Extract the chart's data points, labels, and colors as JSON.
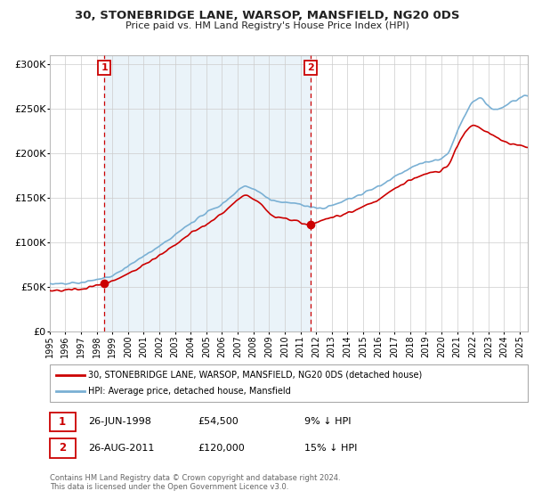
{
  "title": "30, STONEBRIDGE LANE, WARSOP, MANSFIELD, NG20 0DS",
  "subtitle": "Price paid vs. HM Land Registry's House Price Index (HPI)",
  "ylabel_ticks": [
    "£0",
    "£50K",
    "£100K",
    "£150K",
    "£200K",
    "£250K",
    "£300K"
  ],
  "ytick_vals": [
    0,
    50000,
    100000,
    150000,
    200000,
    250000,
    300000
  ],
  "ylim": [
    0,
    310000
  ],
  "xlim_start": 1995.0,
  "xlim_end": 2025.5,
  "purchase1_date": 1998.48,
  "purchase1_price": 54500,
  "purchase2_date": 2011.65,
  "purchase2_price": 120000,
  "legend_entry1": "30, STONEBRIDGE LANE, WARSOP, MANSFIELD, NG20 0DS (detached house)",
  "legend_entry2": "HPI: Average price, detached house, Mansfield",
  "table_row1": [
    "1",
    "26-JUN-1998",
    "£54,500",
    "9% ↓ HPI"
  ],
  "table_row2": [
    "2",
    "26-AUG-2011",
    "£120,000",
    "15% ↓ HPI"
  ],
  "footer": "Contains HM Land Registry data © Crown copyright and database right 2024.\nThis data is licensed under the Open Government Licence v3.0.",
  "line_color_property": "#cc0000",
  "line_color_hpi": "#7ab0d4",
  "fill_color_hpi": "#d6e8f5",
  "background_color": "#ffffff",
  "grid_color": "#cccccc",
  "annotation_box_color": "#cc0000",
  "hpi_key_x": [
    1995,
    1996,
    1997,
    1998,
    1999,
    2000,
    2001,
    2002,
    2003,
    2004,
    2005,
    2006,
    2007,
    2007.5,
    2008,
    2008.5,
    2009,
    2009.5,
    2010,
    2010.5,
    2011,
    2011.5,
    2012,
    2012.5,
    2013,
    2014,
    2015,
    2016,
    2017,
    2018,
    2019,
    2020,
    2020.5,
    2021,
    2021.5,
    2022,
    2022.5,
    2023,
    2023.5,
    2024,
    2024.5,
    2025.3
  ],
  "hpi_key_y": [
    53000,
    53500,
    55000,
    58000,
    63000,
    73000,
    85000,
    95000,
    108000,
    122000,
    133000,
    143000,
    158000,
    164000,
    160000,
    155000,
    148000,
    145000,
    146000,
    144000,
    143000,
    140000,
    138000,
    139000,
    141000,
    148000,
    155000,
    163000,
    174000,
    183000,
    190000,
    193000,
    200000,
    225000,
    242000,
    258000,
    262000,
    252000,
    248000,
    252000,
    258000,
    263000
  ],
  "prop_key_x": [
    1995,
    1996,
    1997,
    1998,
    1998.48,
    1999,
    2000,
    2001,
    2002,
    2003,
    2004,
    2005,
    2006,
    2007,
    2007.5,
    2008,
    2008.5,
    2009,
    2009.5,
    2010,
    2010.5,
    2011,
    2011.5,
    2011.65,
    2012,
    2012.5,
    2013,
    2014,
    2015,
    2016,
    2017,
    2018,
    2019,
    2020,
    2020.5,
    2021,
    2021.5,
    2022,
    2022.5,
    2023,
    2023.5,
    2024,
    2024.5,
    2025.3
  ],
  "prop_key_y": [
    46000,
    46500,
    48000,
    52000,
    54500,
    57000,
    65000,
    75000,
    85000,
    97000,
    110000,
    120000,
    132000,
    148000,
    153000,
    149000,
    143000,
    132000,
    128000,
    127000,
    125000,
    122000,
    119000,
    120000,
    123000,
    126000,
    128000,
    133000,
    140000,
    148000,
    160000,
    170000,
    177000,
    180000,
    188000,
    208000,
    223000,
    232000,
    228000,
    222000,
    218000,
    213000,
    210000,
    207000
  ]
}
